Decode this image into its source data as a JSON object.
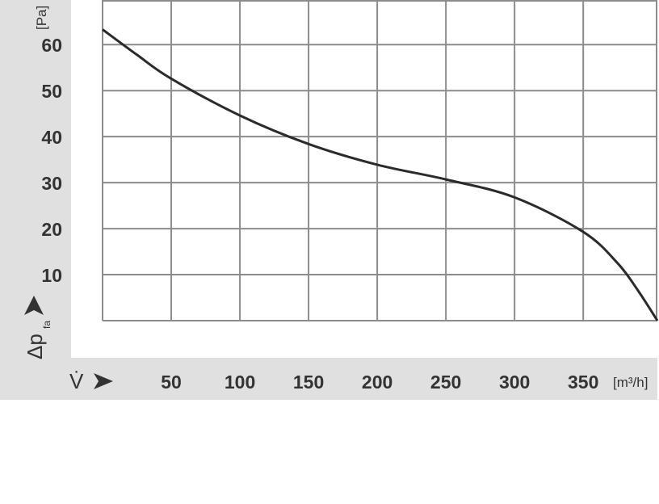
{
  "chart_data": {
    "type": "line",
    "title": "",
    "xlabel": "V̇",
    "xunit": "[m³/h]",
    "ylabel": "Δp",
    "ylabel_subscript": "fa",
    "yunit": "[Pa]",
    "xlim": [
      0,
      404
    ],
    "ylim": [
      0,
      69.7
    ],
    "grid": true,
    "x_ticks": [
      50,
      100,
      150,
      200,
      250,
      300,
      350
    ],
    "y_ticks": [
      10,
      20,
      30,
      40,
      50,
      60
    ],
    "series": [
      {
        "x": [
          0,
          25,
          50,
          100,
          150,
          200,
          250,
          300,
          350,
          375,
          390,
          404
        ],
        "y": [
          63.3,
          57.8,
          52.6,
          44.6,
          38.4,
          33.9,
          30.7,
          26.8,
          19.3,
          12.5,
          6.5,
          0
        ],
        "color": "#2b2b2b"
      }
    ],
    "colors": {
      "panel": "#e0e0e0",
      "grid": "#8c8c8c",
      "text": "#333333"
    }
  }
}
